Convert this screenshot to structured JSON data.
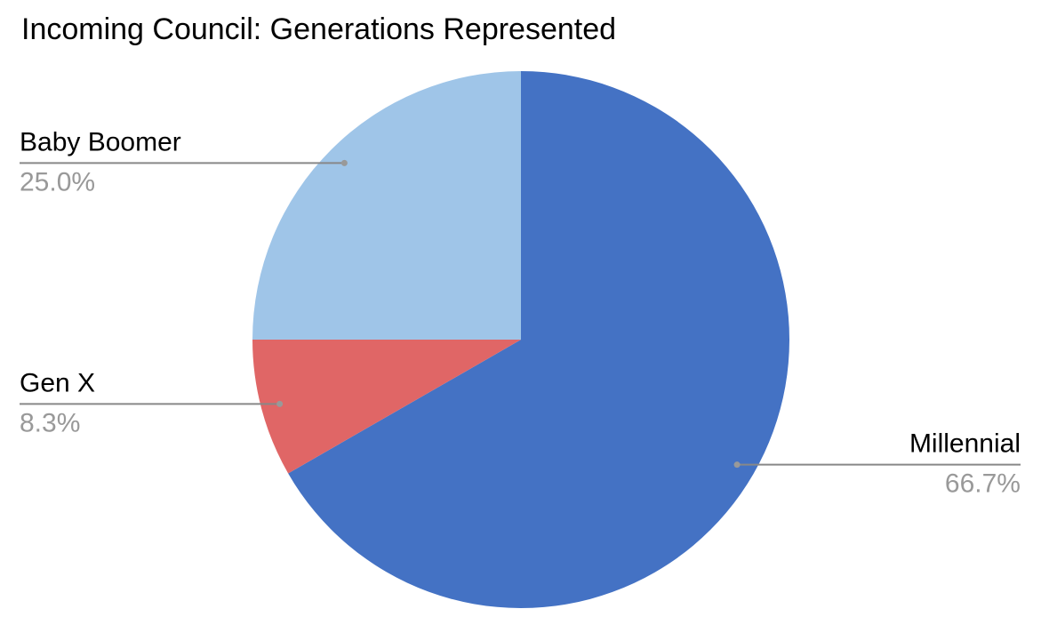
{
  "chart_data": {
    "type": "pie",
    "title": "Incoming Council: Generations Represented",
    "categories": [
      "Millennial",
      "Gen X",
      "Baby Boomer"
    ],
    "values": [
      66.7,
      8.3,
      25.0
    ],
    "value_labels": [
      "66.7%",
      "8.3%",
      "25.0%"
    ],
    "colors": [
      "#4472c4",
      "#e06666",
      "#9fc5e8"
    ]
  }
}
